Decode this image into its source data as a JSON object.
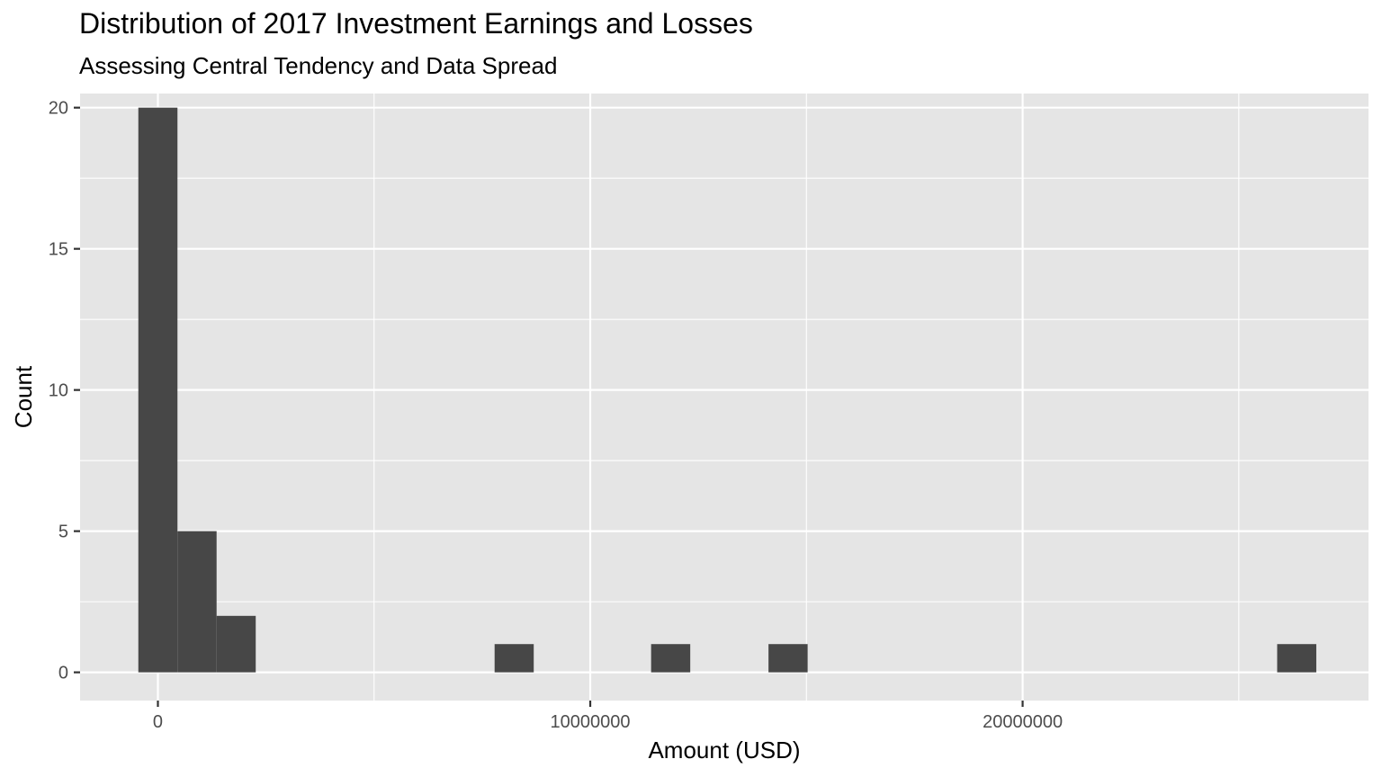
{
  "chart_data": {
    "type": "bar",
    "title": "Distribution of 2017 Investment Earnings and Losses",
    "subtitle": "Assessing Central Tendency and Data Spread",
    "xlabel": "Amount (USD)",
    "ylabel": "Count",
    "xlim": [
      -1800000,
      28000000
    ],
    "ylim": [
      -1,
      20.5
    ],
    "x_ticks": [
      0,
      10000000,
      20000000
    ],
    "x_tick_labels": [
      "0",
      "10000000",
      "20000000"
    ],
    "y_ticks": [
      0,
      5,
      10,
      15,
      20
    ],
    "y_tick_labels": [
      "0",
      "5",
      "10",
      "15",
      "20"
    ],
    "x_minor_ticks": [
      -5000000,
      5000000,
      15000000,
      25000000
    ],
    "y_minor_ticks": [
      2.5,
      7.5,
      12.5,
      17.5
    ],
    "bin_width": 905000,
    "bins": [
      {
        "x0": -452500,
        "x1": 452500,
        "count": 20
      },
      {
        "x0": 452500,
        "x1": 1357500,
        "count": 5
      },
      {
        "x0": 1357500,
        "x1": 2262500,
        "count": 2
      },
      {
        "x0": 7787500,
        "x1": 8692500,
        "count": 1
      },
      {
        "x0": 11407500,
        "x1": 12312500,
        "count": 1
      },
      {
        "x0": 14122500,
        "x1": 15027500,
        "count": 1
      },
      {
        "x0": 25887500,
        "x1": 26792500,
        "count": 1
      }
    ],
    "grid": true,
    "bar_color": "#474747",
    "panel_color": "#e5e5e5",
    "grid_color": "#ffffff"
  }
}
